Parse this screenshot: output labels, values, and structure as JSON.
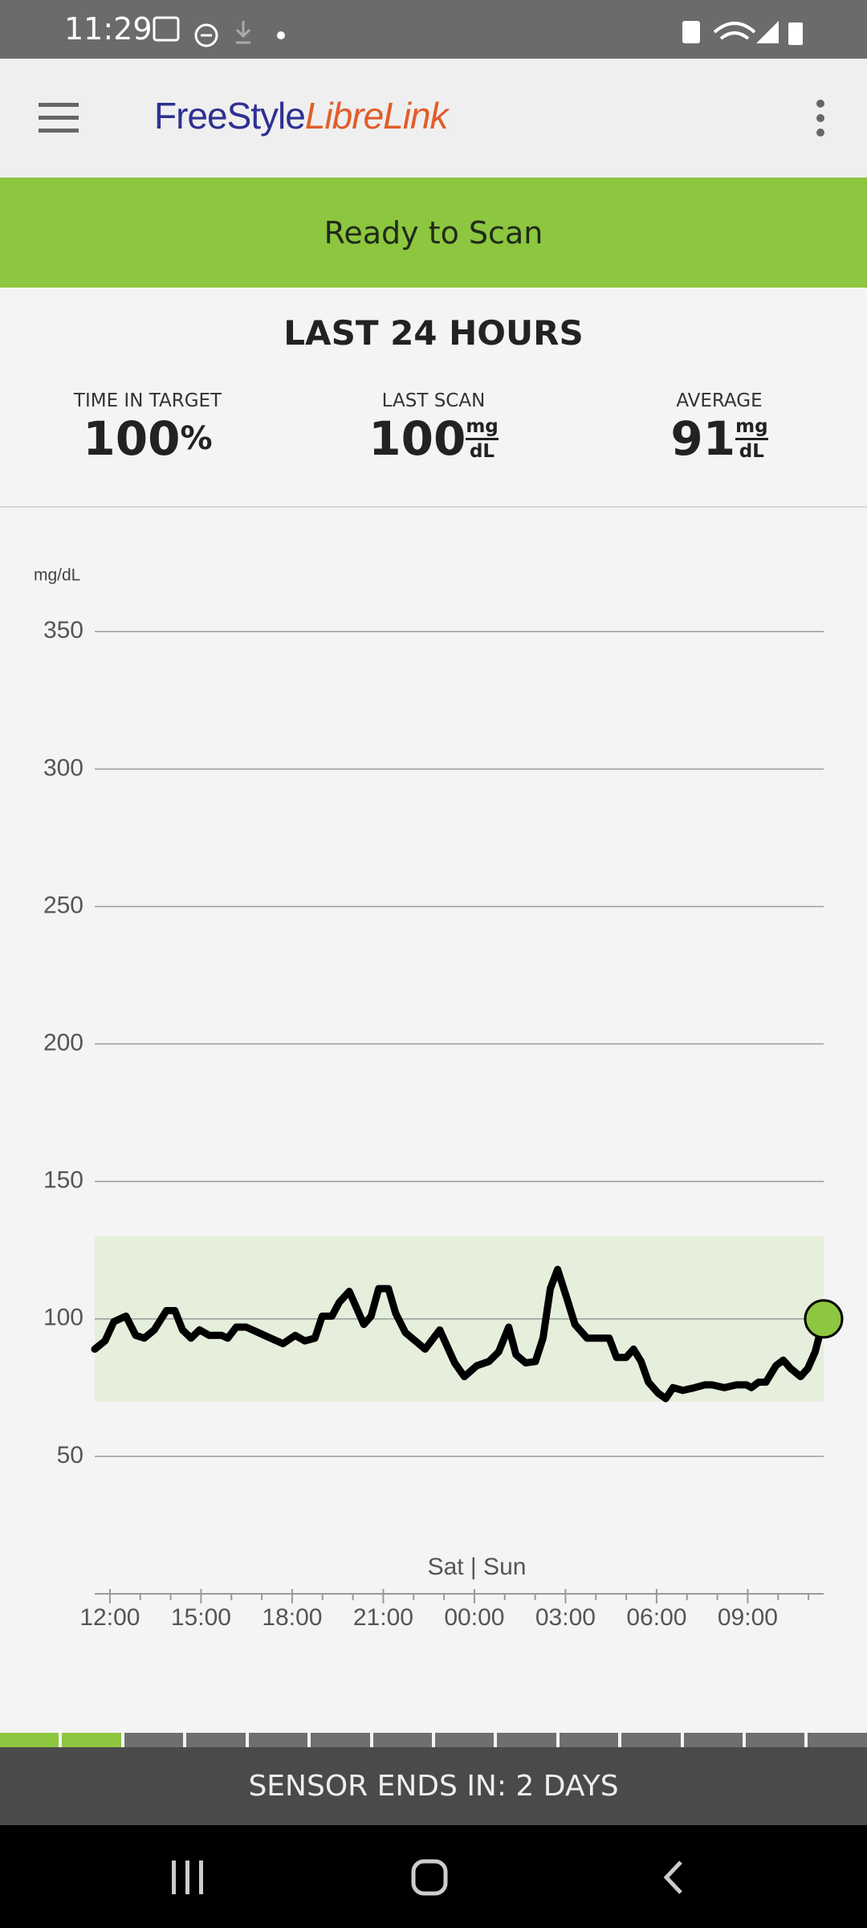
{
  "status_bar": {
    "time": "11:29"
  },
  "app_bar": {
    "brand_first": "FreeStyle",
    "brand_second": "LibreLink"
  },
  "banner": {
    "text": "Ready to Scan"
  },
  "summary": {
    "title": "LAST 24 HOURS",
    "stats": [
      {
        "label": "TIME IN TARGET",
        "value": 100,
        "unit": "%"
      },
      {
        "label": "LAST SCAN",
        "value": 100,
        "unit_top": "mg",
        "unit_bottom": "dL"
      },
      {
        "label": "AVERAGE",
        "value": 91,
        "unit_top": "mg",
        "unit_bottom": "dL"
      }
    ]
  },
  "chart_data": {
    "type": "line",
    "y_label": "mg/dL",
    "annotation": "Sat | Sun",
    "x": [
      11.5,
      11.84,
      12.13,
      12.53,
      12.85,
      13.13,
      13.46,
      13.86,
      14.14,
      14.39,
      14.67,
      14.95,
      15.27,
      15.68,
      15.88,
      16.16,
      16.49,
      16.89,
      17.29,
      17.7,
      18.1,
      18.42,
      18.75,
      18.99,
      19.31,
      19.55,
      19.88,
      20.12,
      20.36,
      20.6,
      20.85,
      21.17,
      21.41,
      21.73,
      22.38,
      22.86,
      23.35,
      23.67,
      24.08,
      24.48,
      24.8,
      25.13,
      25.37,
      25.69,
      26.01,
      26.26,
      26.5,
      26.74,
      27.06,
      27.31,
      27.71,
      28.11,
      28.44,
      28.68,
      29.0,
      29.24,
      29.49,
      29.73,
      30.05,
      30.3,
      30.54,
      30.86,
      31.26,
      31.58,
      31.83,
      32.23,
      32.63,
      32.96,
      33.12,
      33.36,
      33.6,
      33.93,
      34.17,
      34.41,
      34.74,
      34.98,
      35.22,
      35.5
    ],
    "series": [
      {
        "name": "Glucose",
        "color": "#000000",
        "values": [
          89,
          92,
          99,
          101,
          94,
          93,
          96,
          103,
          103,
          96,
          93,
          96,
          94,
          94,
          93,
          97,
          97,
          95,
          93,
          91,
          94,
          92,
          93,
          101,
          101,
          106,
          110,
          104,
          98,
          101,
          111,
          111,
          102,
          95,
          89,
          96,
          84,
          79,
          83,
          84.5,
          88,
          97,
          87,
          84,
          84.5,
          93,
          111,
          118,
          107,
          98,
          93,
          93,
          93,
          86,
          86,
          89,
          84.5,
          77,
          73,
          71,
          75,
          74,
          75,
          76,
          76,
          75,
          76,
          76,
          75,
          77,
          77,
          83,
          85,
          82,
          79,
          82,
          88,
          100
        ]
      }
    ],
    "marker_color": "#8dc63f",
    "target_range": [
      70,
      130
    ],
    "target_color": "#e5efdc",
    "xlim": [
      11.5,
      35.5
    ],
    "xticks": [
      {
        "value": 12,
        "label": "12:00"
      },
      {
        "value": 15,
        "label": "15:00"
      },
      {
        "value": 18,
        "label": "18:00"
      },
      {
        "value": 21,
        "label": "21:00"
      },
      {
        "value": 24,
        "label": "00:00"
      },
      {
        "value": 27,
        "label": "03:00"
      },
      {
        "value": 30,
        "label": "06:00"
      },
      {
        "value": 33,
        "label": "09:00"
      }
    ],
    "xminorticks": [
      13,
      14,
      16,
      17,
      19,
      20,
      22,
      23,
      25,
      26,
      28,
      29,
      31,
      32,
      34,
      35
    ],
    "ylim": [
      0,
      360
    ],
    "yticks": [
      50,
      100,
      150,
      200,
      250,
      300,
      350
    ],
    "grid": true
  },
  "footer": {
    "sensor_text": "SENSOR ENDS IN: 2 DAYS"
  }
}
